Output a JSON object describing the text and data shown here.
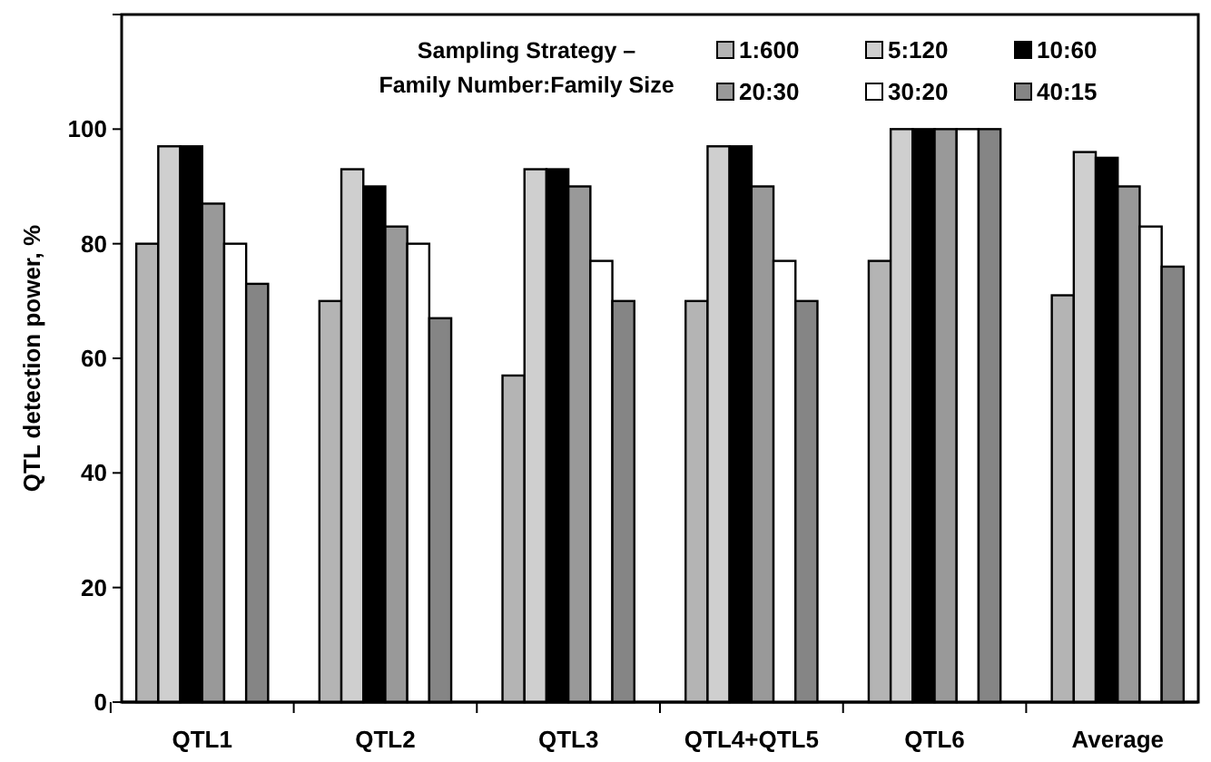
{
  "chart_data": {
    "type": "bar",
    "ylabel": "QTL detection power, %",
    "legend_title": "Sampling Strategy –\nFamily Number:Family Size",
    "legend": "top right",
    "categories": [
      "QTL1",
      "QTL2",
      "QTL3",
      "QTL4+QTL5",
      "QTL6",
      "Average"
    ],
    "ylim": [
      0,
      120
    ],
    "yticks": [
      0,
      20,
      40,
      60,
      80,
      100,
      {
        "value": 120,
        "label": null
      }
    ],
    "series": [
      {
        "name": "1:600",
        "color": "#b4b4b4",
        "values": [
          80,
          70,
          57,
          70,
          77,
          71
        ]
      },
      {
        "name": "5:120",
        "color": "#cfcfcf",
        "values": [
          97,
          93,
          93,
          97,
          100,
          96
        ]
      },
      {
        "name": "10:60",
        "color": "#000000",
        "values": [
          97,
          90,
          93,
          97,
          100,
          95
        ]
      },
      {
        "name": "20:30",
        "color": "#999999",
        "values": [
          87,
          83,
          90,
          90,
          100,
          90
        ]
      },
      {
        "name": "30:20",
        "color": "#ffffff",
        "values": [
          80,
          80,
          77,
          77,
          100,
          83
        ]
      },
      {
        "name": "40:15",
        "color": "#858585",
        "values": [
          73,
          67,
          70,
          70,
          100,
          76
        ]
      }
    ]
  }
}
